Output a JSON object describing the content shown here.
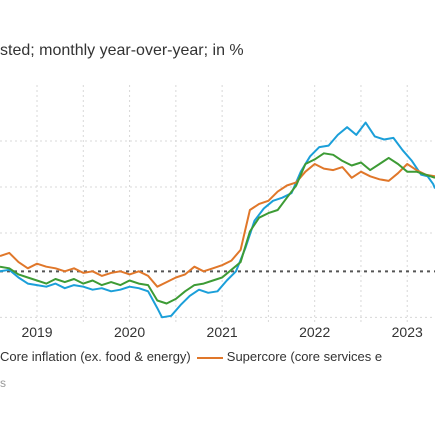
{
  "subtitle": "sted; monthly year-over-year; in %",
  "legend": {
    "item_core": "Core inflation (ex. food & energy)",
    "item_supercore": "Supercore (core services e"
  },
  "source_fragment": "s",
  "colors": {
    "blue": "#1b9fd9",
    "orange": "#e0772a",
    "green": "#3d9b35",
    "grid": "#d8d8d8",
    "reference_line": "#555555"
  },
  "chart_data": {
    "type": "line",
    "x_tick_labels": [
      "2019",
      "2020",
      "2021",
      "2022",
      "2023"
    ],
    "x_range": [
      2018.6,
      2023.3
    ],
    "y_range": [
      -3.5,
      11.5
    ],
    "reference_line_y": 0,
    "grid": true,
    "series": [
      {
        "color": "blue",
        "points": [
          [
            2018.6,
            0.0
          ],
          [
            2018.7,
            0.1
          ],
          [
            2018.8,
            -0.4
          ],
          [
            2018.9,
            -0.8
          ],
          [
            2019.0,
            -0.9
          ],
          [
            2019.1,
            -1.0
          ],
          [
            2019.2,
            -0.8
          ],
          [
            2019.3,
            -1.1
          ],
          [
            2019.4,
            -0.9
          ],
          [
            2019.5,
            -1.0
          ],
          [
            2019.6,
            -1.2
          ],
          [
            2019.7,
            -1.1
          ],
          [
            2019.8,
            -1.3
          ],
          [
            2019.9,
            -1.2
          ],
          [
            2020.0,
            -1.0
          ],
          [
            2020.1,
            -1.1
          ],
          [
            2020.2,
            -1.3
          ],
          [
            2020.3,
            -2.4
          ],
          [
            2020.35,
            -3.0
          ],
          [
            2020.45,
            -2.9
          ],
          [
            2020.55,
            -2.2
          ],
          [
            2020.65,
            -1.6
          ],
          [
            2020.75,
            -1.2
          ],
          [
            2020.85,
            -1.4
          ],
          [
            2020.95,
            -1.3
          ],
          [
            2021.05,
            -0.6
          ],
          [
            2021.15,
            0.0
          ],
          [
            2021.25,
            1.5
          ],
          [
            2021.35,
            3.3
          ],
          [
            2021.45,
            4.1
          ],
          [
            2021.55,
            4.6
          ],
          [
            2021.65,
            4.8
          ],
          [
            2021.75,
            5.1
          ],
          [
            2021.85,
            6.5
          ],
          [
            2021.95,
            7.5
          ],
          [
            2022.05,
            8.1
          ],
          [
            2022.15,
            8.2
          ],
          [
            2022.25,
            8.9
          ],
          [
            2022.35,
            9.4
          ],
          [
            2022.45,
            8.9
          ],
          [
            2022.55,
            9.7
          ],
          [
            2022.65,
            8.8
          ],
          [
            2022.75,
            8.6
          ],
          [
            2022.85,
            8.7
          ],
          [
            2022.95,
            7.9
          ],
          [
            2023.05,
            7.2
          ],
          [
            2023.15,
            6.3
          ],
          [
            2023.22,
            6.2
          ],
          [
            2023.28,
            5.7
          ],
          [
            2023.3,
            5.4
          ]
        ]
      },
      {
        "color": "orange",
        "points": [
          [
            2018.6,
            1.0
          ],
          [
            2018.7,
            1.2
          ],
          [
            2018.8,
            0.6
          ],
          [
            2018.9,
            0.2
          ],
          [
            2019.0,
            0.5
          ],
          [
            2019.1,
            0.3
          ],
          [
            2019.2,
            0.2
          ],
          [
            2019.3,
            0.0
          ],
          [
            2019.4,
            0.2
          ],
          [
            2019.5,
            -0.1
          ],
          [
            2019.6,
            0.0
          ],
          [
            2019.7,
            -0.3
          ],
          [
            2019.8,
            -0.1
          ],
          [
            2019.9,
            0.0
          ],
          [
            2020.0,
            -0.2
          ],
          [
            2020.1,
            0.0
          ],
          [
            2020.2,
            -0.3
          ],
          [
            2020.3,
            -1.0
          ],
          [
            2020.4,
            -0.7
          ],
          [
            2020.5,
            -0.4
          ],
          [
            2020.6,
            -0.2
          ],
          [
            2020.7,
            0.3
          ],
          [
            2020.8,
            0.0
          ],
          [
            2020.9,
            0.2
          ],
          [
            2021.0,
            0.4
          ],
          [
            2021.1,
            0.7
          ],
          [
            2021.2,
            1.4
          ],
          [
            2021.3,
            4.0
          ],
          [
            2021.4,
            4.4
          ],
          [
            2021.5,
            4.6
          ],
          [
            2021.6,
            5.2
          ],
          [
            2021.7,
            5.6
          ],
          [
            2021.8,
            5.8
          ],
          [
            2021.9,
            6.5
          ],
          [
            2022.0,
            7.0
          ],
          [
            2022.1,
            6.7
          ],
          [
            2022.2,
            6.6
          ],
          [
            2022.3,
            6.8
          ],
          [
            2022.4,
            6.1
          ],
          [
            2022.5,
            6.5
          ],
          [
            2022.6,
            6.2
          ],
          [
            2022.7,
            6.0
          ],
          [
            2022.8,
            5.9
          ],
          [
            2022.9,
            6.4
          ],
          [
            2023.0,
            7.0
          ],
          [
            2023.1,
            6.6
          ],
          [
            2023.2,
            6.3
          ],
          [
            2023.3,
            6.2
          ]
        ]
      },
      {
        "color": "green",
        "points": [
          [
            2018.6,
            0.3
          ],
          [
            2018.7,
            0.2
          ],
          [
            2018.8,
            -0.2
          ],
          [
            2018.9,
            -0.4
          ],
          [
            2019.0,
            -0.6
          ],
          [
            2019.1,
            -0.8
          ],
          [
            2019.2,
            -0.5
          ],
          [
            2019.3,
            -0.7
          ],
          [
            2019.4,
            -0.5
          ],
          [
            2019.5,
            -0.8
          ],
          [
            2019.6,
            -0.6
          ],
          [
            2019.7,
            -0.9
          ],
          [
            2019.8,
            -0.7
          ],
          [
            2019.9,
            -0.9
          ],
          [
            2020.0,
            -0.6
          ],
          [
            2020.1,
            -0.8
          ],
          [
            2020.2,
            -0.9
          ],
          [
            2020.3,
            -1.9
          ],
          [
            2020.4,
            -2.1
          ],
          [
            2020.5,
            -1.8
          ],
          [
            2020.6,
            -1.3
          ],
          [
            2020.7,
            -0.9
          ],
          [
            2020.8,
            -0.8
          ],
          [
            2020.9,
            -0.6
          ],
          [
            2021.0,
            -0.4
          ],
          [
            2021.1,
            0.1
          ],
          [
            2021.2,
            0.6
          ],
          [
            2021.3,
            2.6
          ],
          [
            2021.4,
            3.5
          ],
          [
            2021.5,
            3.8
          ],
          [
            2021.6,
            4.0
          ],
          [
            2021.7,
            4.8
          ],
          [
            2021.8,
            5.6
          ],
          [
            2021.9,
            7.0
          ],
          [
            2022.0,
            7.3
          ],
          [
            2022.1,
            7.7
          ],
          [
            2022.2,
            7.6
          ],
          [
            2022.3,
            7.2
          ],
          [
            2022.4,
            6.9
          ],
          [
            2022.5,
            7.1
          ],
          [
            2022.6,
            6.6
          ],
          [
            2022.7,
            7.0
          ],
          [
            2022.8,
            7.4
          ],
          [
            2022.9,
            7.0
          ],
          [
            2023.0,
            6.5
          ],
          [
            2023.1,
            6.5
          ],
          [
            2023.2,
            6.3
          ],
          [
            2023.3,
            6.1
          ]
        ]
      }
    ]
  }
}
